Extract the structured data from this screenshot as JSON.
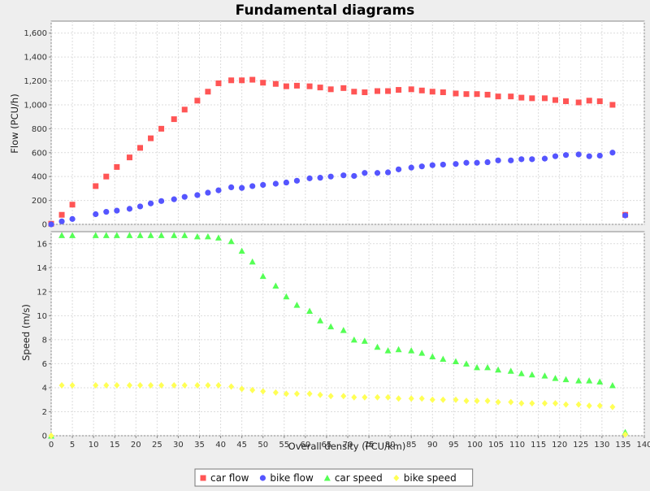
{
  "chart_data": {
    "type": "scatter",
    "title": "Fundamental diagrams",
    "legend_position": "bottom",
    "grid": true,
    "xlabel": "Overall density (PCU/km)",
    "xlim": [
      0,
      140
    ],
    "xticks": [
      0,
      5,
      10,
      15,
      20,
      25,
      30,
      35,
      40,
      45,
      50,
      55,
      60,
      65,
      70,
      75,
      80,
      85,
      90,
      95,
      100,
      105,
      110,
      115,
      120,
      125,
      130,
      135,
      140
    ],
    "top": {
      "ylabel": "Flow (PCU/h)",
      "ylim": [
        0,
        1700
      ],
      "yticks": [
        0,
        200,
        400,
        600,
        800,
        1000,
        1200,
        1400,
        1600
      ],
      "ytick_labels": [
        "0",
        "200",
        "400",
        "600",
        "800",
        "1,000",
        "1,200",
        "1,400",
        "1,600"
      ]
    },
    "bottom": {
      "ylabel": "Speed (m/s)",
      "ylim": [
        0,
        17
      ],
      "yticks": [
        0,
        2,
        4,
        6,
        8,
        10,
        12,
        14,
        16
      ],
      "ytick_labels": [
        "0",
        "2",
        "4",
        "6",
        "8",
        "10",
        "12",
        "14",
        "16"
      ]
    },
    "series": [
      {
        "name": "car flow",
        "panel": "top",
        "marker": "square",
        "color": "#ff5555",
        "x": [
          0,
          2.5,
          5,
          10.5,
          13,
          15.5,
          18.5,
          21,
          23.5,
          26,
          29,
          31.5,
          34.5,
          37,
          39.5,
          42.5,
          45,
          47.5,
          50,
          53,
          55.5,
          58,
          61,
          63.5,
          66,
          69,
          71.5,
          74,
          77,
          79.5,
          82,
          85,
          87.5,
          90,
          92.5,
          95.5,
          98,
          100.5,
          103,
          105.5,
          108.5,
          111,
          113.5,
          116.5,
          119,
          121.5,
          124.5,
          127,
          129.5,
          132.5,
          135.5
        ],
        "y": [
          5,
          80,
          165,
          320,
          400,
          480,
          560,
          640,
          720,
          800,
          880,
          960,
          1035,
          1110,
          1180,
          1205,
          1205,
          1210,
          1185,
          1175,
          1155,
          1160,
          1155,
          1145,
          1130,
          1140,
          1110,
          1105,
          1115,
          1115,
          1125,
          1130,
          1120,
          1110,
          1105,
          1095,
          1090,
          1090,
          1085,
          1070,
          1070,
          1060,
          1055,
          1055,
          1040,
          1030,
          1020,
          1035,
          1030,
          1000,
          80
        ]
      },
      {
        "name": "bike flow",
        "panel": "top",
        "marker": "circle",
        "color": "#5555ff",
        "x": [
          0,
          2.5,
          5,
          10.5,
          13,
          15.5,
          18.5,
          21,
          23.5,
          26,
          29,
          31.5,
          34.5,
          37,
          39.5,
          42.5,
          45,
          47.5,
          50,
          53,
          55.5,
          58,
          61,
          63.5,
          66,
          69,
          71.5,
          74,
          77,
          79.5,
          82,
          85,
          87.5,
          90,
          92.5,
          95.5,
          98,
          100.5,
          103,
          105.5,
          108.5,
          111,
          113.5,
          116.5,
          119,
          121.5,
          124.5,
          127,
          129.5,
          132.5,
          135.5
        ],
        "y": [
          0,
          25,
          45,
          85,
          105,
          115,
          130,
          150,
          175,
          195,
          210,
          230,
          245,
          265,
          285,
          310,
          305,
          320,
          330,
          340,
          350,
          365,
          385,
          390,
          400,
          410,
          405,
          430,
          430,
          435,
          460,
          475,
          485,
          495,
          500,
          505,
          515,
          515,
          520,
          535,
          535,
          545,
          545,
          550,
          570,
          580,
          585,
          570,
          575,
          600,
          75
        ]
      },
      {
        "name": "car speed",
        "panel": "bottom",
        "marker": "triangle",
        "color": "#55ff55",
        "x": [
          0,
          2.5,
          5,
          10.5,
          13,
          15.5,
          18.5,
          21,
          23.5,
          26,
          29,
          31.5,
          34.5,
          37,
          39.5,
          42.5,
          45,
          47.5,
          50,
          53,
          55.5,
          58,
          61,
          63.5,
          66,
          69,
          71.5,
          74,
          77,
          79.5,
          82,
          85,
          87.5,
          90,
          92.5,
          95.5,
          98,
          100.5,
          103,
          105.5,
          108.5,
          111,
          113.5,
          116.5,
          119,
          121.5,
          124.5,
          127,
          129.5,
          132.5,
          135.5
        ],
        "y": [
          0,
          16.7,
          16.7,
          16.7,
          16.7,
          16.7,
          16.7,
          16.7,
          16.7,
          16.7,
          16.7,
          16.7,
          16.6,
          16.6,
          16.5,
          16.2,
          15.4,
          14.5,
          13.3,
          12.5,
          11.6,
          10.9,
          10.4,
          9.6,
          9.1,
          8.8,
          8.0,
          7.9,
          7.4,
          7.1,
          7.2,
          7.1,
          6.9,
          6.6,
          6.4,
          6.2,
          6.0,
          5.7,
          5.7,
          5.5,
          5.4,
          5.2,
          5.1,
          5.0,
          4.8,
          4.7,
          4.6,
          4.6,
          4.5,
          4.2,
          0.3
        ]
      },
      {
        "name": "bike speed",
        "panel": "bottom",
        "marker": "diamond",
        "color": "#ffff55",
        "x": [
          0,
          2.5,
          5,
          10.5,
          13,
          15.5,
          18.5,
          21,
          23.5,
          26,
          29,
          31.5,
          34.5,
          37,
          39.5,
          42.5,
          45,
          47.5,
          50,
          53,
          55.5,
          58,
          61,
          63.5,
          66,
          69,
          71.5,
          74,
          77,
          79.5,
          82,
          85,
          87.5,
          90,
          92.5,
          95.5,
          98,
          100.5,
          103,
          105.5,
          108.5,
          111,
          113.5,
          116.5,
          119,
          121.5,
          124.5,
          127,
          129.5,
          132.5,
          135.5
        ],
        "y": [
          0,
          4.2,
          4.2,
          4.2,
          4.2,
          4.2,
          4.2,
          4.2,
          4.2,
          4.2,
          4.2,
          4.2,
          4.2,
          4.2,
          4.2,
          4.1,
          3.9,
          3.8,
          3.7,
          3.6,
          3.5,
          3.5,
          3.5,
          3.4,
          3.3,
          3.3,
          3.2,
          3.2,
          3.2,
          3.2,
          3.1,
          3.1,
          3.1,
          3.0,
          3.0,
          3.0,
          2.9,
          2.9,
          2.9,
          2.8,
          2.8,
          2.7,
          2.7,
          2.7,
          2.7,
          2.6,
          2.6,
          2.5,
          2.5,
          2.4,
          0.1
        ]
      }
    ]
  }
}
